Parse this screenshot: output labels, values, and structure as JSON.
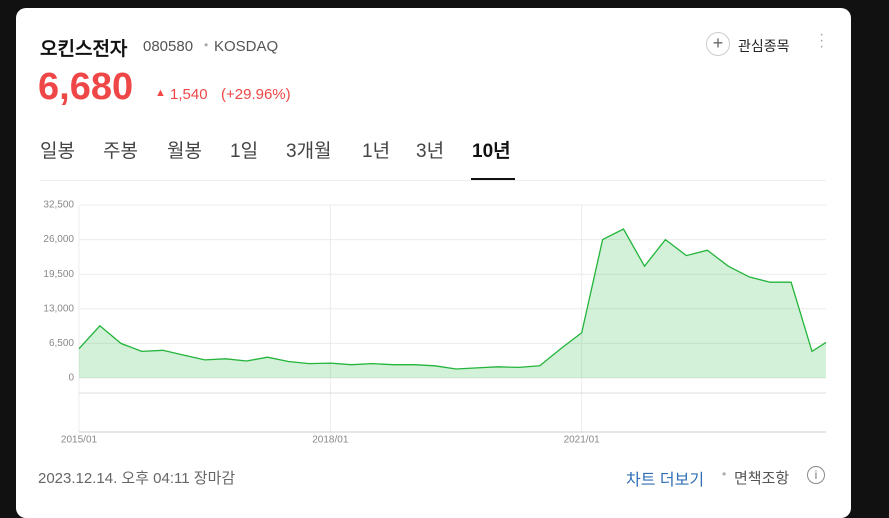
{
  "header": {
    "name": "오킨스전자",
    "code": "080580",
    "market": "KOSDAQ",
    "watch": "관심종목",
    "price": "6,680",
    "change": "1,540",
    "change_pct": "(+29.96%)"
  },
  "tabs": [
    "일봉",
    "주봉",
    "월봉",
    "1일",
    "3개월",
    "1년",
    "3년",
    "10년"
  ],
  "active_tab": 7,
  "chart_data": {
    "type": "area",
    "color": "#22b53a",
    "x": [
      "2015/01",
      "2015/04",
      "2015/07",
      "2015/10",
      "2016/01",
      "2016/04",
      "2016/07",
      "2016/10",
      "2017/01",
      "2017/04",
      "2017/07",
      "2017/10",
      "2018/01",
      "2018/04",
      "2018/07",
      "2018/10",
      "2019/01",
      "2019/04",
      "2019/07",
      "2019/10",
      "2020/01",
      "2020/04",
      "2020/07",
      "2020/10",
      "2021/01",
      "2021/04",
      "2021/07",
      "2021/10",
      "2022/01",
      "2022/04",
      "2022/07",
      "2022/10",
      "2023/01",
      "2023/04",
      "2023/07",
      "2023/10",
      "2023/12"
    ],
    "values": [
      5500,
      9800,
      6500,
      5000,
      5200,
      4300,
      3400,
      3600,
      3200,
      3900,
      3100,
      2700,
      2800,
      2500,
      2700,
      2500,
      2500,
      2300,
      1700,
      1900,
      2100,
      2000,
      2300,
      5500,
      8500,
      26000,
      28000,
      21000,
      26000,
      23000,
      24000,
      21000,
      19000,
      18000,
      18000,
      5000,
      6680
    ],
    "xlim": [
      "2015/01",
      "2023/12"
    ],
    "xticks": [
      "2015/01",
      "2018/01",
      "2021/01"
    ],
    "ylim": [
      0,
      32500
    ],
    "yticks": [
      0,
      {
        "value": 6500,
        "label": "6,500"
      },
      {
        "value": 13000,
        "label": "13,000"
      },
      {
        "value": 19500,
        "label": "19,500"
      },
      {
        "value": 26000,
        "label": "26,000"
      },
      {
        "value": 32500,
        "label": "32,500"
      }
    ],
    "grid": true
  },
  "footer": {
    "timestamp": "2023.12.14. 오후 04:11 장마감",
    "more": "차트 더보기",
    "disclaimer": "면책조항"
  }
}
